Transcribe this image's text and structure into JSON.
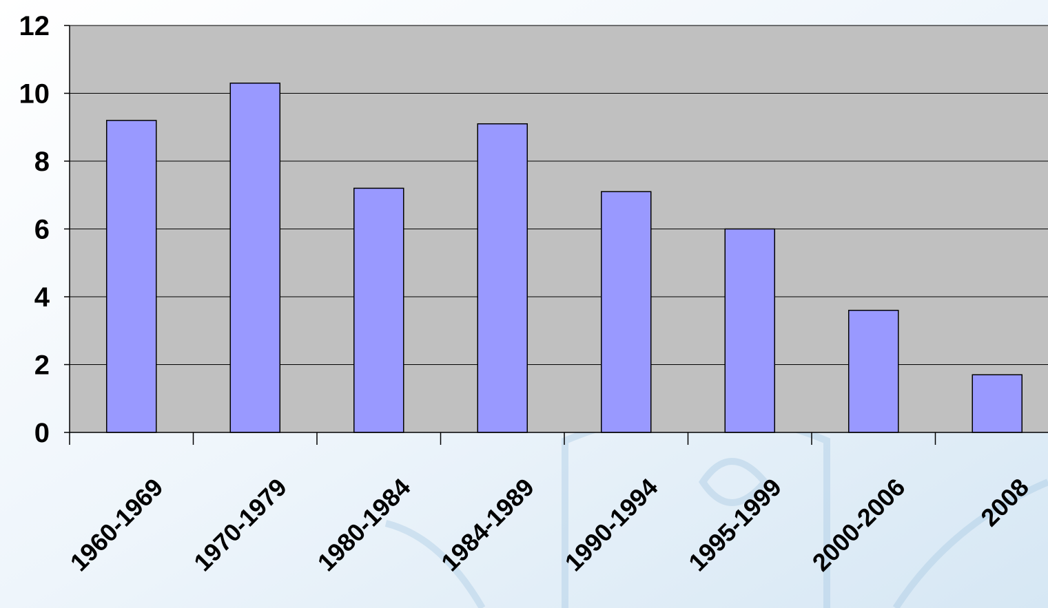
{
  "chart_data": {
    "type": "bar",
    "categories": [
      "1960-1969",
      "1970-1979",
      "1980-1984",
      "1984-1989",
      "1990-1994",
      "1995-1999",
      "2000-2006",
      "2008"
    ],
    "values": [
      9.2,
      10.3,
      7.2,
      9.1,
      7.1,
      6.0,
      3.6,
      1.7
    ],
    "ylim": [
      0,
      12
    ],
    "yticks": [
      "0",
      "2",
      "4",
      "6",
      "8",
      "10",
      "12"
    ],
    "grid": true,
    "legend": "none",
    "colors": {
      "bar_fill": "#9999ff",
      "plot_background": "#c0c0c0",
      "gridline": "#000000",
      "bar_outline": "#000000",
      "page_tint": "#dde9f4"
    }
  }
}
